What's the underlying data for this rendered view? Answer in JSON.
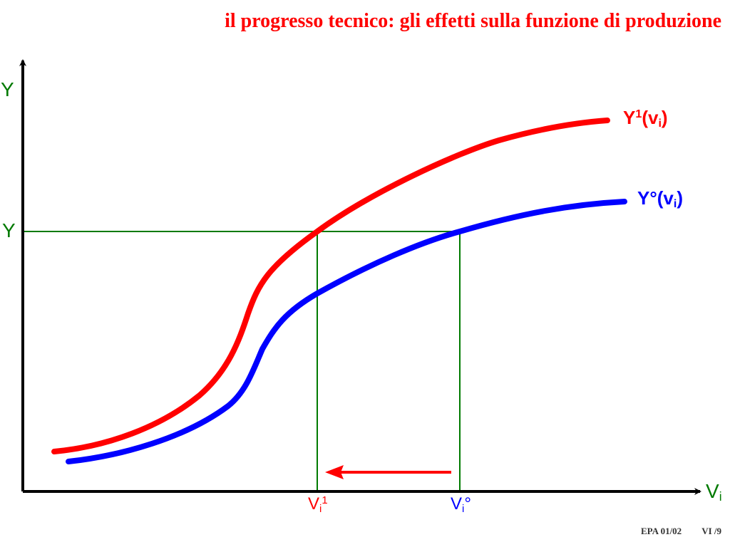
{
  "title": "il progresso tecnico: gli effetti sulla funzione di produzione",
  "colors": {
    "title": "#ff0000",
    "red_curve": "#ff0000",
    "blue_curve": "#0000ff",
    "guides": "#007a00",
    "axis_labels": "#007a00",
    "axes": "#000000"
  },
  "axes": {
    "y_label": "Y",
    "x_label": {
      "base": "V",
      "sub": "i"
    }
  },
  "y_level_label": "Y",
  "curves": {
    "red": {
      "base": "Y",
      "sup": "1",
      "open": "(v",
      "sub": "i",
      "close": ")"
    },
    "blue": {
      "base": "Y°(v",
      "sub": "i",
      "close": ")"
    }
  },
  "x_ticks": {
    "red": {
      "base": "V",
      "sub": "i",
      "sup": "1"
    },
    "blue": {
      "base": "V",
      "sub": "i",
      "suffix": "°"
    }
  },
  "arrow": {
    "direction": "left",
    "color": "#ff0000"
  },
  "footer": {
    "left": "EPA 01/02",
    "right": "VI /9"
  }
}
